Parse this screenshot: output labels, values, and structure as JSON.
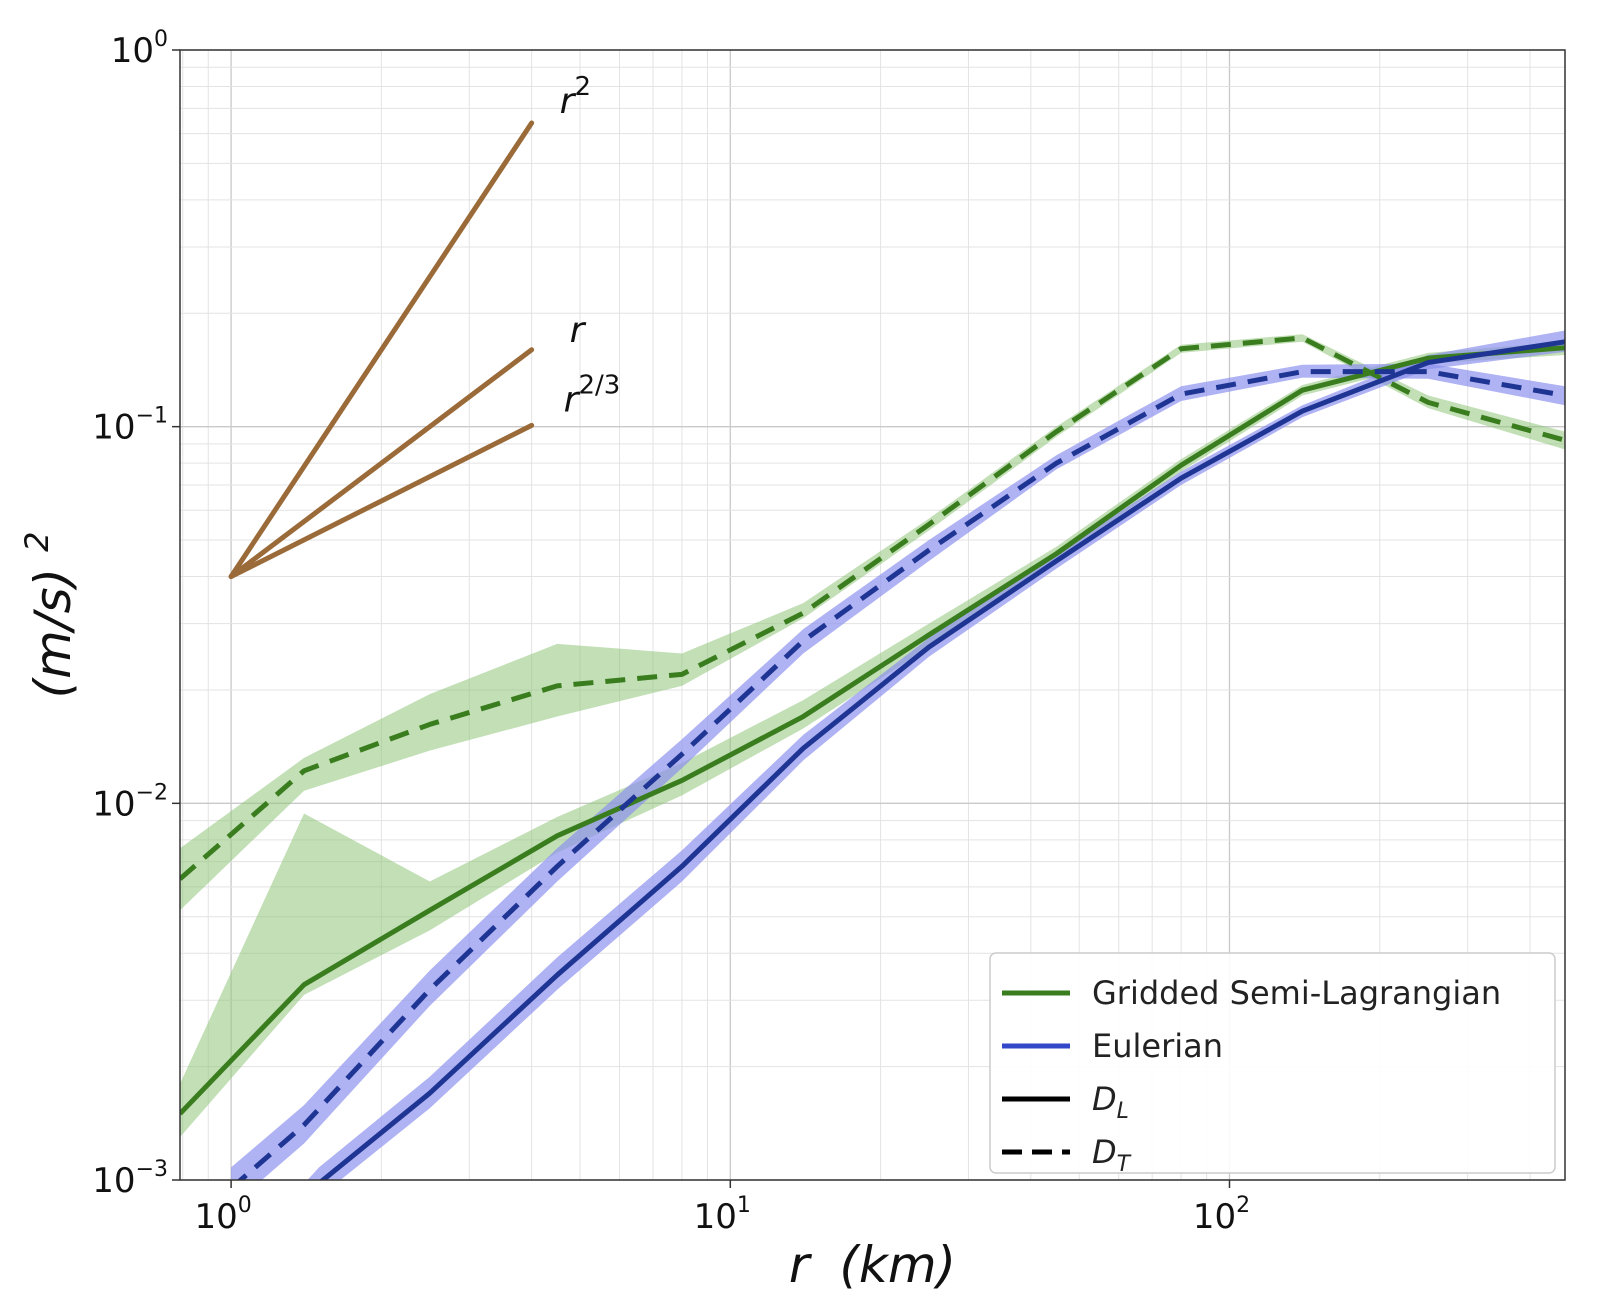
{
  "chart_data": {
    "type": "line",
    "xlabel_main": "r",
    "xlabel_unit": "(km)",
    "ylabel_main": "(m/s)",
    "ylabel_exp": "2",
    "x_scale": "log",
    "y_scale": "log",
    "xlim": [
      0.79,
      470
    ],
    "ylim": [
      0.001,
      1.0
    ],
    "grid": true,
    "legend_position": "lower-right",
    "x_ticks": [
      {
        "base": "10",
        "exp": "0",
        "value": 1
      },
      {
        "base": "10",
        "exp": "1",
        "value": 10
      },
      {
        "base": "10",
        "exp": "2",
        "value": 100
      }
    ],
    "y_ticks": [
      {
        "base": "10",
        "exp": "0",
        "value": 1
      },
      {
        "base": "10",
        "exp": "−1",
        "value": 0.1
      },
      {
        "base": "10",
        "exp": "−2",
        "value": 0.01
      },
      {
        "base": "10",
        "exp": "−3",
        "value": 0.001
      }
    ],
    "legend": [
      {
        "label": "Gridded Semi-Lagrangian",
        "kind": "color",
        "color": "#3a7d1e"
      },
      {
        "label": "Eulerian",
        "kind": "color",
        "color": "#3347c9"
      },
      {
        "label_main": "D",
        "label_sub": "L",
        "kind": "solid"
      },
      {
        "label_main": "D",
        "label_sub": "T",
        "kind": "dashed"
      }
    ],
    "reference_slopes": {
      "color": "#9a6a38",
      "origin": [
        1.0,
        0.04
      ],
      "x_end": 4.0,
      "lines": [
        {
          "slope": 2,
          "label_base": "r",
          "label_exp": "2"
        },
        {
          "slope": 1,
          "label_base": "r",
          "label_exp": ""
        },
        {
          "slope": 0.6667,
          "label_base": "r",
          "label_exp": "2/3"
        }
      ]
    },
    "series": [
      {
        "model": "Gridded Semi-Lagrangian",
        "component": "D_L",
        "style": "solid",
        "color": "#3a7d1e",
        "band_color": "#8fc47a",
        "x": [
          0.79,
          1.4,
          2.5,
          4.5,
          8,
          14,
          25,
          45,
          80,
          140,
          250,
          470
        ],
        "y": [
          0.0015,
          0.0033,
          0.0052,
          0.0082,
          0.0115,
          0.017,
          0.028,
          0.046,
          0.079,
          0.125,
          0.152,
          0.162
        ],
        "lower": [
          0.0013,
          0.0031,
          0.0046,
          0.0074,
          0.0105,
          0.0158,
          0.026,
          0.044,
          0.076,
          0.121,
          0.147,
          0.155
        ],
        "upper": [
          0.0018,
          0.0094,
          0.0062,
          0.0092,
          0.0128,
          0.0188,
          0.03,
          0.048,
          0.082,
          0.129,
          0.157,
          0.168
        ]
      },
      {
        "model": "Gridded Semi-Lagrangian",
        "component": "D_T",
        "style": "dashed",
        "color": "#3a7d1e",
        "band_color": "#8fc47a",
        "x": [
          0.79,
          1.4,
          2.5,
          4.5,
          8,
          14,
          25,
          45,
          80,
          140,
          250,
          470
        ],
        "y": [
          0.0063,
          0.0122,
          0.0162,
          0.0205,
          0.022,
          0.032,
          0.055,
          0.097,
          0.161,
          0.172,
          0.116,
          0.092
        ],
        "lower": [
          0.0052,
          0.0108,
          0.0138,
          0.017,
          0.0205,
          0.031,
          0.053,
          0.094,
          0.157,
          0.168,
          0.112,
          0.087
        ],
        "upper": [
          0.0076,
          0.0132,
          0.0195,
          0.0265,
          0.025,
          0.034,
          0.057,
          0.1,
          0.165,
          0.176,
          0.121,
          0.097
        ]
      },
      {
        "model": "Eulerian",
        "component": "D_L",
        "style": "solid",
        "color": "#1f3594",
        "band_color": "#8d92ee",
        "x": [
          1.0,
          1.5,
          2.5,
          4.5,
          8,
          14,
          25,
          45,
          80,
          140,
          250,
          470
        ],
        "y": [
          0.00055,
          0.00098,
          0.0017,
          0.0035,
          0.0068,
          0.014,
          0.026,
          0.044,
          0.073,
          0.11,
          0.148,
          0.168
        ],
        "lower": [
          0.0005,
          0.0009,
          0.00155,
          0.0032,
          0.0062,
          0.013,
          0.0245,
          0.042,
          0.07,
          0.106,
          0.142,
          0.158
        ],
        "upper": [
          0.0006,
          0.00108,
          0.00188,
          0.0039,
          0.0075,
          0.0152,
          0.0275,
          0.046,
          0.076,
          0.114,
          0.155,
          0.18
        ]
      },
      {
        "model": "Eulerian",
        "component": "D_T",
        "style": "dashed",
        "color": "#1f3594",
        "band_color": "#8d92ee",
        "x": [
          1.0,
          1.4,
          2.5,
          4.5,
          8,
          14,
          25,
          45,
          80,
          140,
          250,
          470
        ],
        "y": [
          0.00095,
          0.0014,
          0.0032,
          0.0068,
          0.0135,
          0.027,
          0.047,
          0.08,
          0.122,
          0.14,
          0.14,
          0.121
        ],
        "lower": [
          0.00085,
          0.00125,
          0.0029,
          0.0062,
          0.0124,
          0.025,
          0.044,
          0.077,
          0.117,
          0.135,
          0.134,
          0.114
        ],
        "upper": [
          0.00108,
          0.00158,
          0.0036,
          0.0076,
          0.0148,
          0.029,
          0.05,
          0.084,
          0.128,
          0.146,
          0.147,
          0.128
        ]
      }
    ]
  }
}
